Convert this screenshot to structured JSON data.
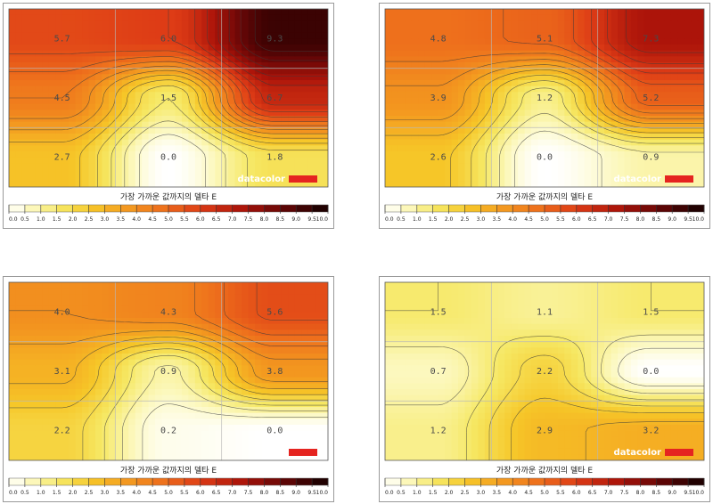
{
  "chart_data": [
    {
      "type": "heatmap",
      "legend_title": "가장 가까운 값까지의 델타 E",
      "brand_text": "datacolor",
      "rows": 3,
      "cols": 3,
      "values": [
        [
          5.7,
          6.0,
          9.3
        ],
        [
          4.5,
          1.5,
          6.7
        ],
        [
          2.7,
          0.0,
          1.8
        ]
      ],
      "labels": [
        [
          "5.7",
          "6.0",
          "9.3"
        ],
        [
          "4.5",
          "1.5",
          "6.7"
        ],
        [
          "2.7",
          "0.0",
          "1.8"
        ]
      ],
      "scale_range": [
        0,
        10
      ],
      "scale_ticks": [
        "0.0",
        "0.5",
        "1.0",
        "1.5",
        "2.0",
        "2.5",
        "3.0",
        "3.5",
        "4.0",
        "4.5",
        "5.0",
        "5.5",
        "6.0",
        "6.5",
        "7.0",
        "7.5",
        "8.0",
        "8.5",
        "9.0",
        "9.5",
        "10.0"
      ]
    },
    {
      "type": "heatmap",
      "legend_title": "가장 가까운 값까지의 델타 E",
      "brand_text": "datacolor",
      "rows": 3,
      "cols": 3,
      "values": [
        [
          4.8,
          5.1,
          7.3
        ],
        [
          3.9,
          1.2,
          5.2
        ],
        [
          2.6,
          0.0,
          0.9
        ]
      ],
      "labels": [
        [
          "4.8",
          "5.1",
          "7.3"
        ],
        [
          "3.9",
          "1.2",
          "5.2"
        ],
        [
          "2.6",
          "0.0",
          "0.9"
        ]
      ],
      "scale_range": [
        0,
        10
      ],
      "scale_ticks": [
        "0.0",
        "0.5",
        "1.0",
        "1.5",
        "2.0",
        "2.5",
        "3.0",
        "3.5",
        "4.0",
        "4.5",
        "5.0",
        "5.5",
        "6.0",
        "6.5",
        "7.0",
        "7.5",
        "8.0",
        "8.5",
        "9.0",
        "9.5",
        "10.0"
      ]
    },
    {
      "type": "heatmap",
      "legend_title": "가장 가까운 값까지의 델타 E",
      "brand_text": "",
      "rows": 3,
      "cols": 3,
      "values": [
        [
          4.0,
          4.3,
          5.6
        ],
        [
          3.1,
          0.9,
          3.8
        ],
        [
          2.2,
          0.2,
          0.0
        ]
      ],
      "labels": [
        [
          "4.0",
          "4.3",
          "5.6"
        ],
        [
          "3.1",
          "0.9",
          "3.8"
        ],
        [
          "2.2",
          "0.2",
          "0.0"
        ]
      ],
      "scale_range": [
        0,
        10
      ],
      "scale_ticks": [
        "0.0",
        "0.5",
        "1.0",
        "1.5",
        "2.0",
        "2.5",
        "3.0",
        "3.5",
        "4.0",
        "4.5",
        "5.0",
        "5.5",
        "6.0",
        "6.5",
        "7.0",
        "7.5",
        "8.0",
        "8.5",
        "9.0",
        "9.5",
        "10.0"
      ]
    },
    {
      "type": "heatmap",
      "legend_title": "가장 가까운 값까지의 델타 E",
      "brand_text": "datacolor",
      "rows": 3,
      "cols": 3,
      "values": [
        [
          1.5,
          1.1,
          1.5
        ],
        [
          0.7,
          2.2,
          0.0
        ],
        [
          1.2,
          2.9,
          3.2
        ]
      ],
      "labels": [
        [
          "1.5",
          "1.1",
          "1.5"
        ],
        [
          "0.7",
          "2.2",
          "0.0"
        ],
        [
          "1.2",
          "2.9",
          "3.2"
        ]
      ],
      "scale_range": [
        0,
        10
      ],
      "scale_ticks": [
        "0.0",
        "0.5",
        "1.0",
        "1.5",
        "2.0",
        "2.5",
        "3.0",
        "3.5",
        "4.0",
        "4.5",
        "5.0",
        "5.5",
        "6.0",
        "6.5",
        "7.0",
        "7.5",
        "8.0",
        "8.5",
        "9.0",
        "9.5",
        "10.0"
      ]
    }
  ]
}
